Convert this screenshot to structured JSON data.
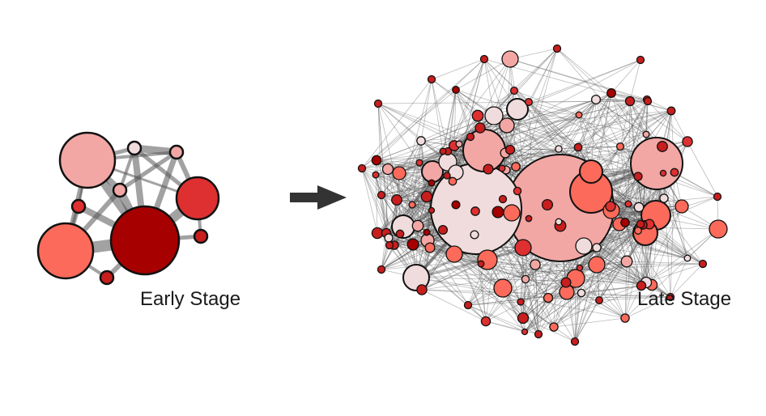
{
  "labels": {
    "early": "Early Stage",
    "late": "Late Stage"
  },
  "colors": {
    "edge": "#555555",
    "node_stroke": "#111111",
    "arrow": "#333333",
    "palette": [
      "#f0dcdc",
      "#f2a7a4",
      "#fb6a5a",
      "#de3030",
      "#c81e1e",
      "#a60000"
    ]
  },
  "early_network": {
    "node_count": 9,
    "description_colors": [
      "light pink",
      "pale",
      "dark red",
      "salmon",
      "crimson"
    ]
  },
  "late_network": {
    "node_count": 120
  }
}
